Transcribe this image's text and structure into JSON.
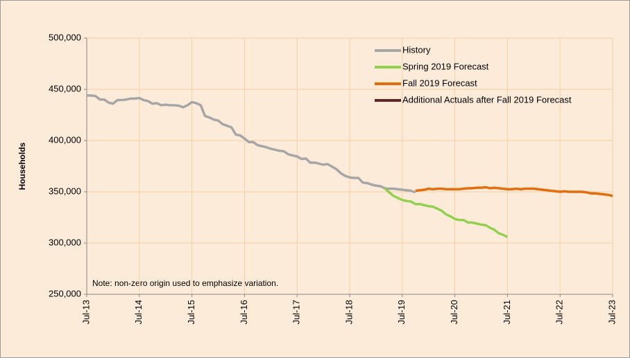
{
  "chart_data": {
    "type": "line",
    "y_label": "Households",
    "note": "Note: non-zero origin used to emphasize variation.",
    "categories": [
      "Jul-13",
      null,
      null,
      null,
      null,
      null,
      null,
      null,
      null,
      null,
      null,
      null,
      "Jul-14",
      null,
      null,
      null,
      null,
      null,
      null,
      null,
      null,
      null,
      null,
      null,
      "Jul-15",
      null,
      null,
      null,
      null,
      null,
      null,
      null,
      null,
      null,
      null,
      null,
      "Jul-16",
      null,
      null,
      null,
      null,
      null,
      null,
      null,
      null,
      null,
      null,
      null,
      "Jul-17",
      null,
      null,
      null,
      null,
      null,
      null,
      null,
      null,
      null,
      null,
      null,
      "Jul-18",
      null,
      null,
      null,
      null,
      null,
      null,
      null,
      null,
      null,
      null,
      null,
      "Jul-19",
      null,
      null,
      null,
      null,
      null,
      null,
      null,
      null,
      null,
      null,
      null,
      "Jul-20",
      null,
      null,
      null,
      null,
      null,
      null,
      null,
      null,
      null,
      null,
      null,
      "Jul-21",
      null,
      null,
      null,
      null,
      null,
      null,
      null,
      null,
      null,
      null,
      null,
      "Jul-22",
      null,
      null,
      null,
      null,
      null,
      null,
      null,
      null,
      null,
      null,
      null,
      "Jul-23"
    ],
    "series": [
      {
        "name": "History",
        "color": "#a6a6a6",
        "values": [
          444000,
          444000,
          443500,
          440000,
          440000,
          437000,
          436000,
          439500,
          439500,
          440000,
          441000,
          441000,
          441500,
          439500,
          438500,
          436000,
          436500,
          434500,
          435000,
          434500,
          434500,
          434000,
          432500,
          434500,
          437500,
          436500,
          434500,
          424000,
          422500,
          420500,
          419500,
          416000,
          414500,
          413000,
          406000,
          405000,
          402000,
          398500,
          398500,
          395500,
          394500,
          393500,
          392000,
          391000,
          390000,
          389500,
          386500,
          385500,
          384500,
          382000,
          382500,
          378500,
          378500,
          377500,
          376500,
          377000,
          374500,
          372000,
          368000,
          365500,
          364000,
          363500,
          363500,
          359000,
          358500,
          357000,
          356000,
          355500,
          353500,
          353000,
          353000,
          352500,
          352000,
          351500,
          351000,
          349500,
          null,
          null,
          null,
          null,
          null,
          null,
          null,
          null,
          null,
          null,
          null,
          null,
          null,
          null,
          null,
          null,
          null,
          null,
          null,
          null,
          null,
          null,
          null,
          null,
          null,
          null,
          null,
          null,
          null,
          null,
          null,
          null,
          null,
          null,
          null,
          null,
          null,
          null,
          null,
          null,
          null,
          null,
          null,
          null,
          null
        ]
      },
      {
        "name": "Spring 2019 Forecast",
        "color": "#92d050",
        "values": [
          null,
          null,
          null,
          null,
          null,
          null,
          null,
          null,
          null,
          null,
          null,
          null,
          null,
          null,
          null,
          null,
          null,
          null,
          null,
          null,
          null,
          null,
          null,
          null,
          null,
          null,
          null,
          null,
          null,
          null,
          null,
          null,
          null,
          null,
          null,
          null,
          null,
          null,
          null,
          null,
          null,
          null,
          null,
          null,
          null,
          null,
          null,
          null,
          null,
          null,
          null,
          null,
          null,
          null,
          null,
          null,
          null,
          null,
          null,
          null,
          null,
          null,
          null,
          null,
          null,
          null,
          null,
          null,
          353500,
          349500,
          346000,
          344000,
          342000,
          341000,
          340500,
          338000,
          338000,
          337000,
          336000,
          335500,
          333500,
          331500,
          328000,
          326000,
          323500,
          322500,
          322500,
          320000,
          320000,
          319000,
          318000,
          317500,
          315000,
          313000,
          309500,
          308000,
          306000,
          null,
          null,
          null,
          null,
          null,
          null,
          null,
          null,
          null,
          null,
          null,
          null,
          null,
          null,
          null,
          null,
          null,
          null,
          null,
          null,
          null,
          null,
          null,
          null
        ]
      },
      {
        "name": "Fall 2019 Forecast",
        "color": "#e46c0a",
        "values": [
          null,
          null,
          null,
          null,
          null,
          null,
          null,
          null,
          null,
          null,
          null,
          null,
          null,
          null,
          null,
          null,
          null,
          null,
          null,
          null,
          null,
          null,
          null,
          null,
          null,
          null,
          null,
          null,
          null,
          null,
          null,
          null,
          null,
          null,
          null,
          null,
          null,
          null,
          null,
          null,
          null,
          null,
          null,
          null,
          null,
          null,
          null,
          null,
          null,
          null,
          null,
          null,
          null,
          null,
          null,
          null,
          null,
          null,
          null,
          null,
          null,
          null,
          null,
          null,
          null,
          null,
          null,
          null,
          null,
          null,
          null,
          null,
          null,
          null,
          null,
          351000,
          351500,
          352000,
          353000,
          352500,
          353000,
          353000,
          352500,
          352500,
          352500,
          352500,
          353000,
          353500,
          353500,
          354000,
          354000,
          354500,
          353500,
          354000,
          353500,
          353000,
          352500,
          352500,
          353000,
          352500,
          353000,
          353000,
          353000,
          352500,
          352000,
          351500,
          351000,
          350500,
          350000,
          350500,
          350000,
          350000,
          350000,
          350000,
          349500,
          348500,
          348500,
          348000,
          347500,
          347000,
          346000
        ]
      },
      {
        "name": "Additional Actuals after Fall 2019 Forecast",
        "color": "#632523",
        "values": [
          null,
          null,
          null,
          null,
          null,
          null,
          null,
          null,
          null,
          null,
          null,
          null,
          null,
          null,
          null,
          null,
          null,
          null,
          null,
          null,
          null,
          null,
          null,
          null,
          null,
          null,
          null,
          null,
          null,
          null,
          null,
          null,
          null,
          null,
          null,
          null,
          null,
          null,
          null,
          null,
          null,
          null,
          null,
          null,
          null,
          null,
          null,
          null,
          null,
          null,
          null,
          null,
          null,
          null,
          null,
          null,
          null,
          null,
          null,
          null,
          null,
          null,
          null,
          null,
          null,
          null,
          null,
          null,
          null,
          null,
          null,
          null,
          null,
          null,
          null,
          null,
          null,
          null,
          null,
          null,
          null,
          null,
          null,
          null,
          null,
          null,
          null,
          null,
          null,
          null,
          null,
          null,
          null,
          null,
          null,
          null,
          null,
          null,
          null,
          null,
          null,
          null,
          null,
          null,
          null,
          null,
          null,
          null,
          null,
          null,
          null,
          null,
          null,
          null,
          null,
          null,
          null,
          null,
          null,
          null,
          null
        ]
      }
    ],
    "ylim": [
      250000,
      500000
    ],
    "yticks": [
      {
        "value": 250000,
        "label": "250,000"
      },
      {
        "value": 300000,
        "label": "300,000"
      },
      {
        "value": 350000,
        "label": "350,000"
      },
      {
        "value": 400000,
        "label": "400,000"
      },
      {
        "value": 450000,
        "label": "450,000"
      },
      {
        "value": 500000,
        "label": "500,000"
      }
    ],
    "grid": true,
    "legend": "top-right"
  }
}
